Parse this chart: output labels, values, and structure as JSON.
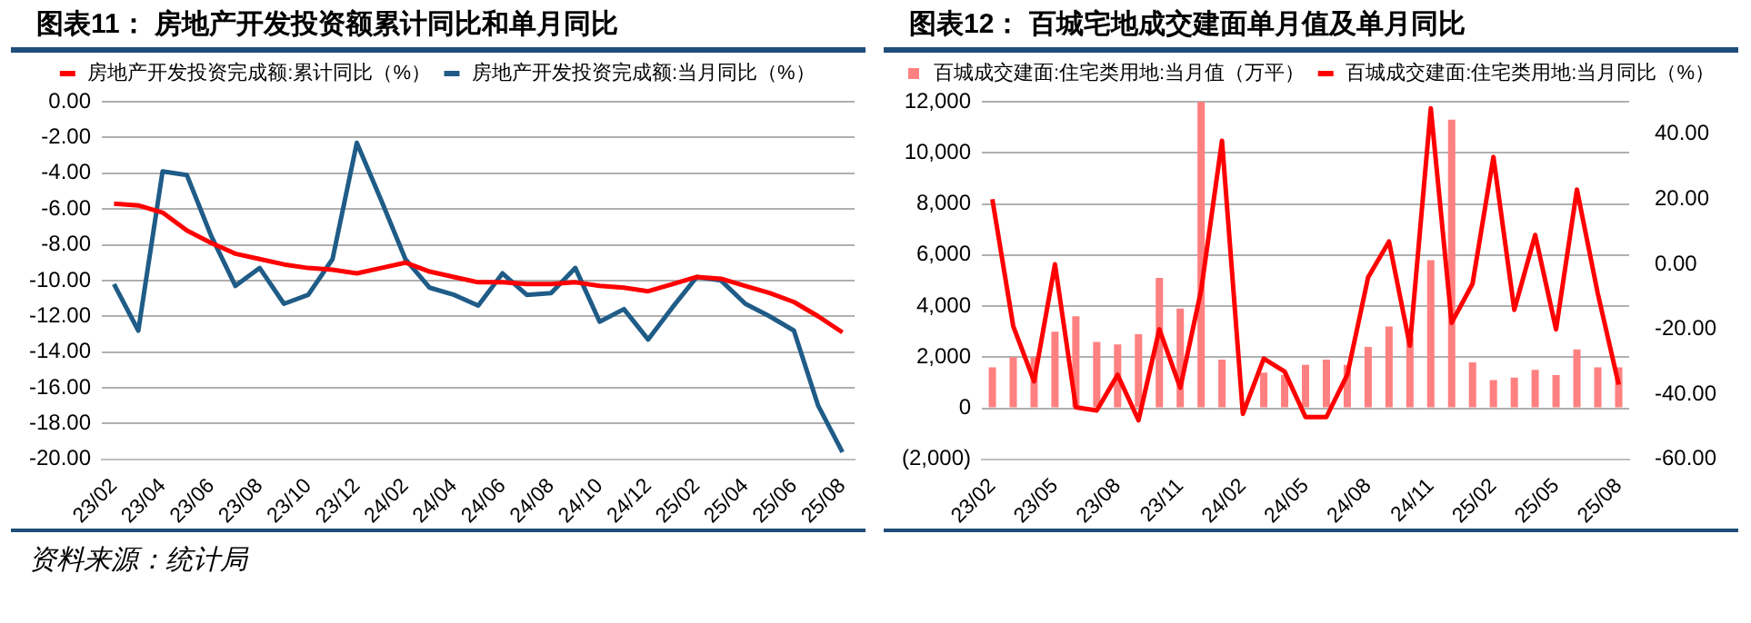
{
  "chart_data": [
    {
      "type": "line",
      "title": "图表11： 房地产开发投资额累计同比和单月同比",
      "categories": [
        "23/02",
        null,
        "23/04",
        null,
        "23/06",
        null,
        "23/08",
        null,
        "23/10",
        null,
        "23/12",
        null,
        "24/02",
        null,
        "24/04",
        null,
        "24/06",
        null,
        "24/08",
        null,
        "24/10",
        null,
        "24/12",
        null,
        "25/02",
        null,
        "25/04",
        null,
        "25/06",
        null,
        "25/08"
      ],
      "series": [
        {
          "name": "房地产开发投资完成额:累计同比（%）",
          "color": "#ff0000",
          "values": [
            -5.7,
            -5.8,
            -6.2,
            -7.2,
            -7.9,
            -8.5,
            -8.8,
            -9.1,
            -9.3,
            -9.4,
            -9.6,
            -9.3,
            -9.0,
            -9.5,
            -9.8,
            -10.1,
            -10.1,
            -10.2,
            -10.2,
            -10.1,
            -10.3,
            -10.4,
            -10.6,
            -10.2,
            -9.8,
            -9.9,
            -10.3,
            -10.7,
            -11.2,
            -12.0,
            -12.9
          ]
        },
        {
          "name": "房地产开发投资完成额:当月同比（%）",
          "color": "#1f5c87",
          "values": [
            -10.2,
            -12.8,
            -3.9,
            -4.1,
            -7.5,
            -10.3,
            -9.3,
            -11.3,
            -10.8,
            -8.8,
            -2.3,
            -5.5,
            -8.8,
            -10.4,
            -10.8,
            -11.4,
            -9.6,
            -10.8,
            -10.7,
            -9.3,
            -12.3,
            -11.6,
            -13.3,
            -11.5,
            -9.8,
            -10.0,
            -11.3,
            -12.0,
            -12.8,
            -17.0,
            -19.6
          ]
        }
      ],
      "ylim": [
        -20,
        0
      ],
      "yticks": [
        {
          "value": 0,
          "label": "0.00"
        },
        {
          "value": -2,
          "label": "-2.00"
        },
        {
          "value": -4,
          "label": "-4.00"
        },
        {
          "value": -6,
          "label": "-6.00"
        },
        {
          "value": -8,
          "label": "-8.00"
        },
        {
          "value": -10,
          "label": "-10.00"
        },
        {
          "value": -12,
          "label": "-12.00"
        },
        {
          "value": -14,
          "label": "-14.00"
        },
        {
          "value": -16,
          "label": "-16.00"
        },
        {
          "value": -18,
          "label": "-18.00"
        },
        {
          "value": -20,
          "label": "-20.00"
        }
      ],
      "grid": "y",
      "legend": "top",
      "marker": "none",
      "line_style": "solid",
      "annotations": [
        "资料来源：统计局"
      ]
    },
    {
      "type": "bar",
      "title": "图表12： 百城宅地成交建面单月值及单月同比",
      "categories": [
        "23/02",
        null,
        null,
        "23/05",
        null,
        null,
        "23/08",
        null,
        null,
        "23/11",
        null,
        null,
        "24/02",
        null,
        null,
        "24/05",
        null,
        null,
        "24/08",
        null,
        null,
        "24/11",
        null,
        null,
        "25/02",
        null,
        null,
        "25/05",
        null,
        null,
        "25/08"
      ],
      "series": [
        {
          "name": "百城成交建面:住宅类用地:当月值（万平）",
          "type": "bar",
          "color": "#ff8080",
          "values": [
            1600,
            2000,
            2000,
            3000,
            3600,
            2600,
            2500,
            2900,
            5100,
            3900,
            12000,
            1900,
            null,
            1400,
            1300,
            1700,
            1900,
            1700,
            2400,
            3200,
            2800,
            5800,
            11300,
            1800,
            1100,
            1200,
            1500,
            1300,
            2300,
            1600,
            1600
          ]
        },
        {
          "name": "百城成交建面:住宅类用地:当月同比（%）",
          "type": "line",
          "axis": "y2",
          "color": "#ff0000",
          "values": [
            20,
            -19,
            -36,
            0,
            -44,
            -45,
            -34,
            -48,
            -20,
            -38,
            -8,
            38,
            -46,
            -29,
            -33,
            -47,
            -47,
            -34,
            -4,
            7,
            -25,
            48,
            -18,
            -6,
            33,
            -14,
            9,
            -20,
            23,
            -9,
            -37
          ]
        }
      ],
      "ylim": [
        -2000,
        12000
      ],
      "yticks": [
        {
          "value": -2000,
          "label": "(2,000)"
        },
        {
          "value": 0,
          "label": "0"
        },
        {
          "value": 2000,
          "label": "2,000"
        },
        {
          "value": 4000,
          "label": "4,000"
        },
        {
          "value": 6000,
          "label": "6,000"
        },
        {
          "value": 8000,
          "label": "8,000"
        },
        {
          "value": 10000,
          "label": "10,000"
        },
        {
          "value": 12000,
          "label": "12,000"
        }
      ],
      "y2lim": [
        -60,
        50
      ],
      "y2ticks": [
        {
          "value": -60,
          "label": "-60.00"
        },
        {
          "value": -40,
          "label": "-40.00"
        },
        {
          "value": -20,
          "label": "-20.00"
        },
        {
          "value": 0,
          "label": "0.00"
        },
        {
          "value": 20,
          "label": "20.00"
        },
        {
          "value": 40,
          "label": "40.00"
        }
      ],
      "grid": "y",
      "legend": "top",
      "marker": "none",
      "line_style": "solid"
    }
  ]
}
